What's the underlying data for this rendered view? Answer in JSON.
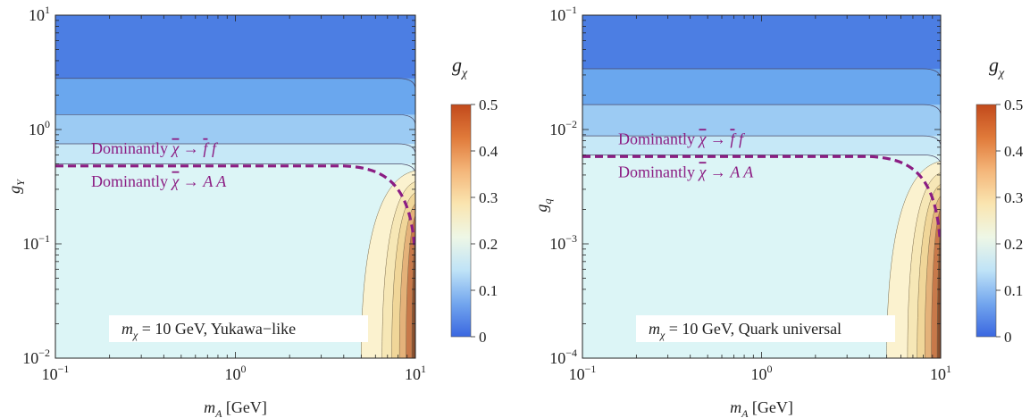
{
  "chart_data": [
    {
      "type": "heatmap",
      "title": "",
      "xlabel": "m_A [GeV]",
      "ylabel": "g_Y",
      "xscale": "log",
      "yscale": "log",
      "xlim": [
        0.1,
        10
      ],
      "ylim": [
        0.01,
        10
      ],
      "x_ticks": [
        {
          "value": 0.1,
          "mant": "10",
          "exp": "−1"
        },
        {
          "value": 1,
          "mant": "10",
          "exp": "0"
        },
        {
          "value": 10,
          "mant": "10",
          "exp": "1"
        }
      ],
      "y_ticks": [
        {
          "value": 0.01,
          "mant": "10",
          "exp": "−2"
        },
        {
          "value": 0.1,
          "mant": "10",
          "exp": "−1"
        },
        {
          "value": 1,
          "mant": "10",
          "exp": "0"
        },
        {
          "value": 10,
          "mant": "10",
          "exp": "1"
        }
      ],
      "contour_bands": [
        {
          "level_min": 0.0,
          "level_max": 0.05,
          "g_lower": 2.8,
          "color": "#4c7ee3"
        },
        {
          "level_min": 0.05,
          "level_max": 0.1,
          "g_lower": 1.35,
          "color": "#6aa7ee"
        },
        {
          "level_min": 0.1,
          "level_max": 0.15,
          "g_lower": 0.75,
          "color": "#9ccbf3"
        },
        {
          "level_min": 0.15,
          "level_max": 0.2,
          "g_lower": 0.5,
          "color": "#c6e8f7"
        },
        {
          "level_min": 0.2,
          "level_max": 0.25,
          "g_lower": 0.01,
          "color": "#dcf5f6"
        }
      ],
      "resonance_region": {
        "m_A_start": 5,
        "m_A_end": 10,
        "colors": [
          "#fbf2cf",
          "#f6e7b6",
          "#f0d699",
          "#e4b27a",
          "#c8794a",
          "#8a4f2e"
        ]
      },
      "boundary_curve": {
        "style": "dashed",
        "color": "#8b1d83",
        "g_plateau": 0.48
      },
      "annotations": [
        {
          "pre": "Dominantly ",
          "chi": "χ",
          "mid": "χ → ",
          "f1": "f",
          "f2": "f",
          "kind": "ff"
        },
        {
          "pre": "Dominantly ",
          "chi": "χ",
          "mid": "χ → A A",
          "kind": "AA"
        }
      ],
      "label_box": {
        "var": "m",
        "sub": "χ",
        "text": " = 10 GeV, Yukawa−like"
      },
      "colorbar": {
        "label_main": "g",
        "label_sub": "χ",
        "range": [
          0,
          0.5
        ],
        "ticks": [
          "0",
          "0.1",
          "0.2",
          "0.3",
          "0.4",
          "0.5"
        ],
        "colors": [
          "#3a67e0",
          "#73a6ee",
          "#bfe3f7",
          "#eef7e6",
          "#fae5b0",
          "#f4b67a",
          "#e07a3a",
          "#c24a1c"
        ]
      }
    },
    {
      "type": "heatmap",
      "title": "",
      "xlabel": "m_A [GeV]",
      "ylabel": "g_q",
      "xscale": "log",
      "yscale": "log",
      "xlim": [
        0.1,
        10
      ],
      "ylim": [
        0.0001,
        0.1
      ],
      "x_ticks": [
        {
          "value": 0.1,
          "mant": "10",
          "exp": "−1"
        },
        {
          "value": 1,
          "mant": "10",
          "exp": "0"
        },
        {
          "value": 10,
          "mant": "10",
          "exp": "1"
        }
      ],
      "y_ticks": [
        {
          "value": 0.0001,
          "mant": "10",
          "exp": "−4"
        },
        {
          "value": 0.001,
          "mant": "10",
          "exp": "−3"
        },
        {
          "value": 0.01,
          "mant": "10",
          "exp": "−2"
        },
        {
          "value": 0.1,
          "mant": "10",
          "exp": "−1"
        }
      ],
      "contour_bands": [
        {
          "level_min": 0.0,
          "level_max": 0.05,
          "g_lower": 0.034,
          "color": "#4c7ee3"
        },
        {
          "level_min": 0.05,
          "level_max": 0.1,
          "g_lower": 0.0165,
          "color": "#6aa7ee"
        },
        {
          "level_min": 0.1,
          "level_max": 0.15,
          "g_lower": 0.0088,
          "color": "#9ccbf3"
        },
        {
          "level_min": 0.15,
          "level_max": 0.2,
          "g_lower": 0.006,
          "color": "#c6e8f7"
        },
        {
          "level_min": 0.2,
          "level_max": 0.25,
          "g_lower": 0.0001,
          "color": "#dcf5f6"
        }
      ],
      "resonance_region": {
        "m_A_start": 5,
        "m_A_end": 10,
        "colors": [
          "#fbf2cf",
          "#f6e7b6",
          "#f0d699",
          "#e4b27a",
          "#c8794a",
          "#8a4f2e"
        ]
      },
      "boundary_curve": {
        "style": "dashed",
        "color": "#8b1d83",
        "g_plateau": 0.0058
      },
      "annotations": [
        {
          "pre": "Dominantly ",
          "chi": "χ",
          "mid": "χ → ",
          "f1": "f",
          "f2": "f",
          "kind": "ff"
        },
        {
          "pre": "Dominantly ",
          "chi": "χ",
          "mid": "χ → A A",
          "kind": "AA"
        }
      ],
      "label_box": {
        "var": "m",
        "sub": "χ",
        "text": " = 10 GeV, Quark universal"
      },
      "colorbar": {
        "label_main": "g",
        "label_sub": "χ",
        "range": [
          0,
          0.5
        ],
        "ticks": [
          "0",
          "0.1",
          "0.2",
          "0.3",
          "0.4",
          "0.5"
        ],
        "colors": [
          "#3a67e0",
          "#73a6ee",
          "#bfe3f7",
          "#eef7e6",
          "#fae5b0",
          "#f4b67a",
          "#e07a3a",
          "#c24a1c"
        ]
      }
    }
  ]
}
